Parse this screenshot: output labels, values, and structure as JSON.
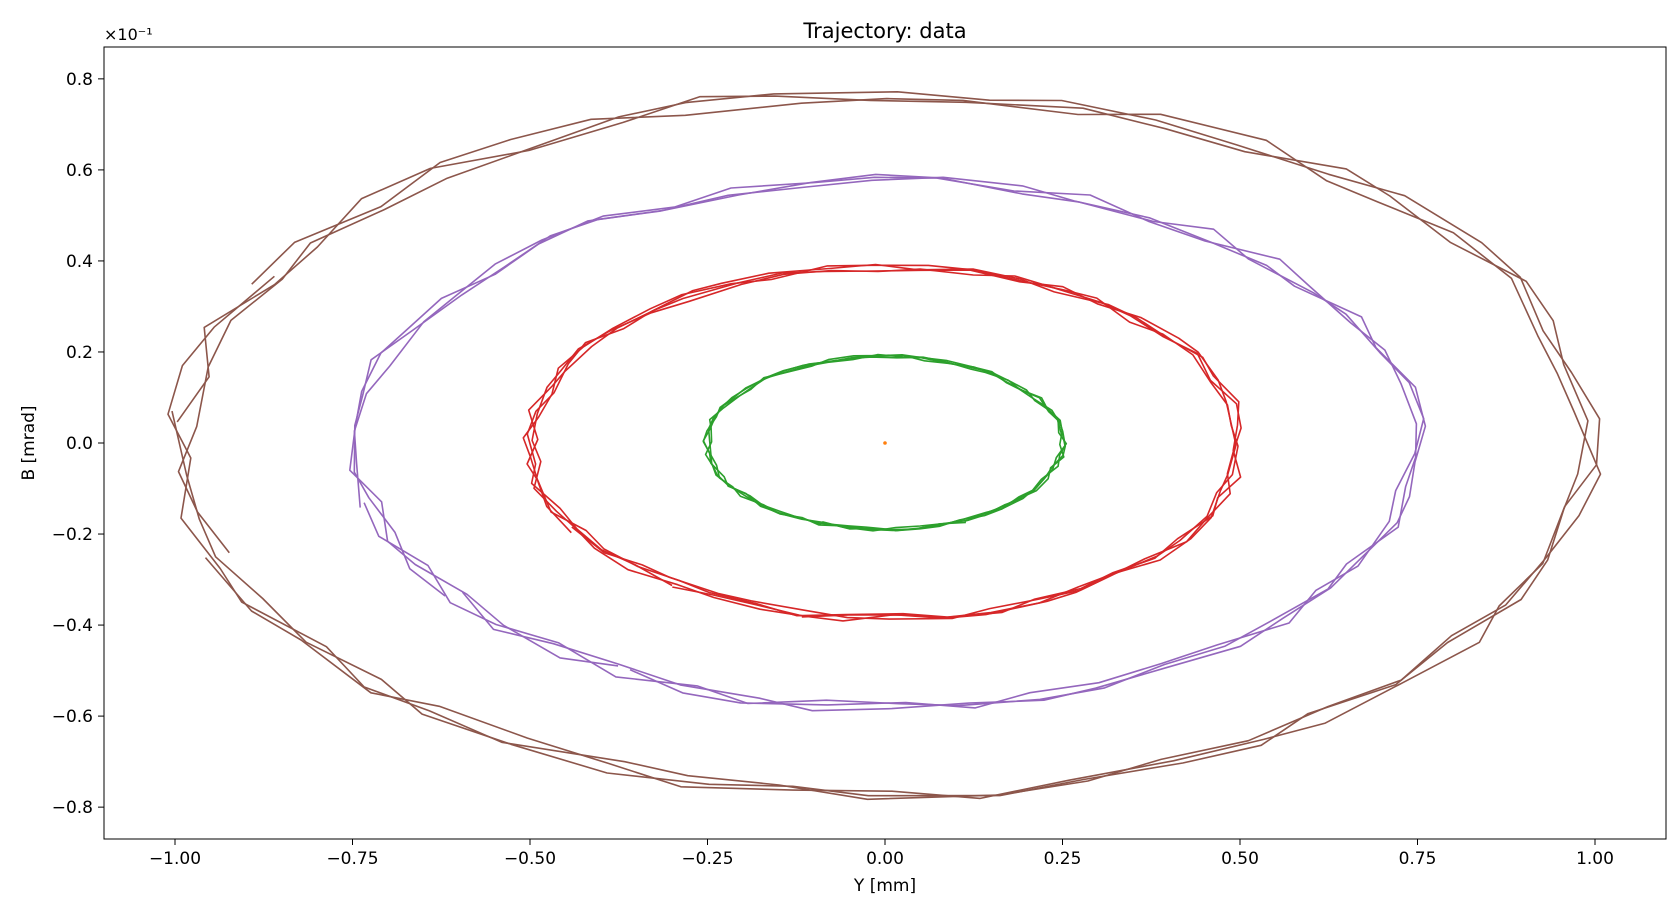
{
  "chart_data": {
    "type": "line",
    "title": "Trajectory: data",
    "xlabel": "Y [mm]",
    "ylabel": "B [mrad]",
    "y_offset_label": "×10⁻¹",
    "xlim": [
      -1.1,
      1.1
    ],
    "ylim": [
      -0.87,
      0.87
    ],
    "x_ticks": [
      -1.0,
      -0.75,
      -0.5,
      -0.25,
      0.0,
      0.25,
      0.5,
      0.75,
      1.0
    ],
    "x_tick_labels": [
      "−1.00",
      "−0.75",
      "−0.50",
      "−0.25",
      "0.00",
      "0.25",
      "0.50",
      "0.75",
      "1.00"
    ],
    "y_ticks": [
      -0.8,
      -0.6,
      -0.4,
      -0.2,
      0.0,
      0.2,
      0.4,
      0.6,
      0.8
    ],
    "y_tick_labels": [
      "−0.8",
      "−0.6",
      "−0.4",
      "−0.2",
      "0.0",
      "0.2",
      "0.4",
      "0.6",
      "0.8"
    ],
    "grid": false,
    "legend": "none",
    "series": [
      {
        "color": "#ff7f0e",
        "amplitude_y": 0.002,
        "amplitude_b": 0.002,
        "turns": 1
      },
      {
        "color": "#2ca02c",
        "amplitude_y": 0.25,
        "amplitude_b": 0.19,
        "turns": 4
      },
      {
        "color": "#d62728",
        "amplitude_y": 0.5,
        "amplitude_b": 0.385,
        "turns": 4
      },
      {
        "color": "#9467bd",
        "amplitude_y": 0.745,
        "amplitude_b": 0.58,
        "turns": 3
      },
      {
        "color": "#8c564b",
        "amplitude_y": 0.99,
        "amplitude_b": 0.77,
        "turns": 3
      }
    ]
  }
}
